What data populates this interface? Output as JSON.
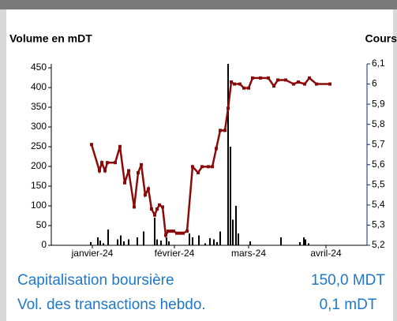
{
  "chart_data": {
    "type": "combo",
    "ylabel": "Volume en mDT",
    "y2label": "Cours",
    "xlim": [
      0,
      100
    ],
    "xticks": [
      {
        "value": 13,
        "label": "janvier-24"
      },
      {
        "value": 39,
        "label": "février-24"
      },
      {
        "value": 62.5,
        "label": "mars-24"
      },
      {
        "value": 87,
        "label": "avril-24"
      }
    ],
    "ylim": [
      0,
      460
    ],
    "yticks": [
      0,
      50,
      100,
      150,
      200,
      250,
      300,
      350,
      400,
      450
    ],
    "y2lim": [
      5.2,
      6.1
    ],
    "y2ticks": [
      {
        "value": 5.2,
        "label": "5,2"
      },
      {
        "value": 5.3,
        "label": "5,3"
      },
      {
        "value": 5.4,
        "label": "5,4"
      },
      {
        "value": 5.5,
        "label": "5,5"
      },
      {
        "value": 5.6,
        "label": "5,6"
      },
      {
        "value": 5.7,
        "label": "5,7"
      },
      {
        "value": 5.8,
        "label": "5,8"
      },
      {
        "value": 5.9,
        "label": "5,9"
      },
      6,
      {
        "value": 6.1,
        "label": "6,1"
      }
    ],
    "series": [
      {
        "type": "bar",
        "color": "#000000",
        "x": [
          12.5,
          14.75,
          15.5,
          16.5,
          18,
          21,
          22,
          23,
          24.5,
          27.25,
          29.25,
          32.75,
          33.5,
          34.75,
          36.5,
          37.25,
          43.75,
          44.75,
          46.75,
          48.75,
          50.25,
          51.5,
          52.5,
          53.5,
          56,
          56.75,
          57.5,
          58.5,
          59.25,
          63,
          72.75,
          78.75,
          80,
          80.5,
          81.5
        ],
        "values": [
          8,
          20,
          12,
          5,
          40,
          15,
          25,
          10,
          15,
          20,
          35,
          70,
          15,
          12,
          20,
          10,
          30,
          20,
          25,
          5,
          18,
          15,
          8,
          35,
          460,
          250,
          65,
          100,
          30,
          10,
          20,
          8,
          20,
          15,
          5
        ]
      },
      {
        "type": "line",
        "axis": "y2",
        "color": "#8b0a0a",
        "x": [
          12.75,
          15.25,
          16,
          17,
          17.75,
          20.25,
          21.75,
          23.25,
          24.5,
          26.25,
          27.5,
          28.5,
          29.75,
          30.75,
          31.75,
          32.75,
          33.5,
          34.25,
          35.25,
          36.25,
          37,
          38,
          38.75,
          39.75,
          40.75,
          41.75,
          43,
          44.75,
          46.5,
          47.75,
          49.75,
          51,
          52.25,
          53.5,
          55,
          56,
          57,
          58,
          59.75,
          61,
          62.5,
          63.75,
          66.25,
          68.75,
          70.5,
          71.75,
          74.25,
          76.75,
          78.25,
          80.25,
          81.75,
          84,
          88.25
        ],
        "values": [
          5.7,
          5.57,
          5.61,
          5.57,
          5.61,
          5.61,
          5.69,
          5.51,
          5.57,
          5.39,
          5.56,
          5.6,
          5.45,
          5.48,
          5.38,
          5.35,
          5.38,
          5.4,
          5.39,
          5.25,
          5.27,
          5.27,
          5.27,
          5.26,
          5.26,
          5.26,
          5.27,
          5.59,
          5.56,
          5.59,
          5.59,
          5.59,
          5.68,
          5.77,
          5.77,
          5.88,
          6.01,
          6.0,
          6.0,
          5.98,
          5.98,
          6.03,
          6.03,
          6.03,
          5.99,
          6.02,
          6.02,
          6.0,
          6.01,
          6.0,
          6.03,
          6.0,
          6.0
        ]
      }
    ]
  },
  "footer": {
    "rows": [
      {
        "label": "Capitalisation boursière",
        "value": "150,0 MDT"
      },
      {
        "label": "Vol. des transactions hebdo.",
        "value": "0,1 mDT"
      }
    ]
  }
}
